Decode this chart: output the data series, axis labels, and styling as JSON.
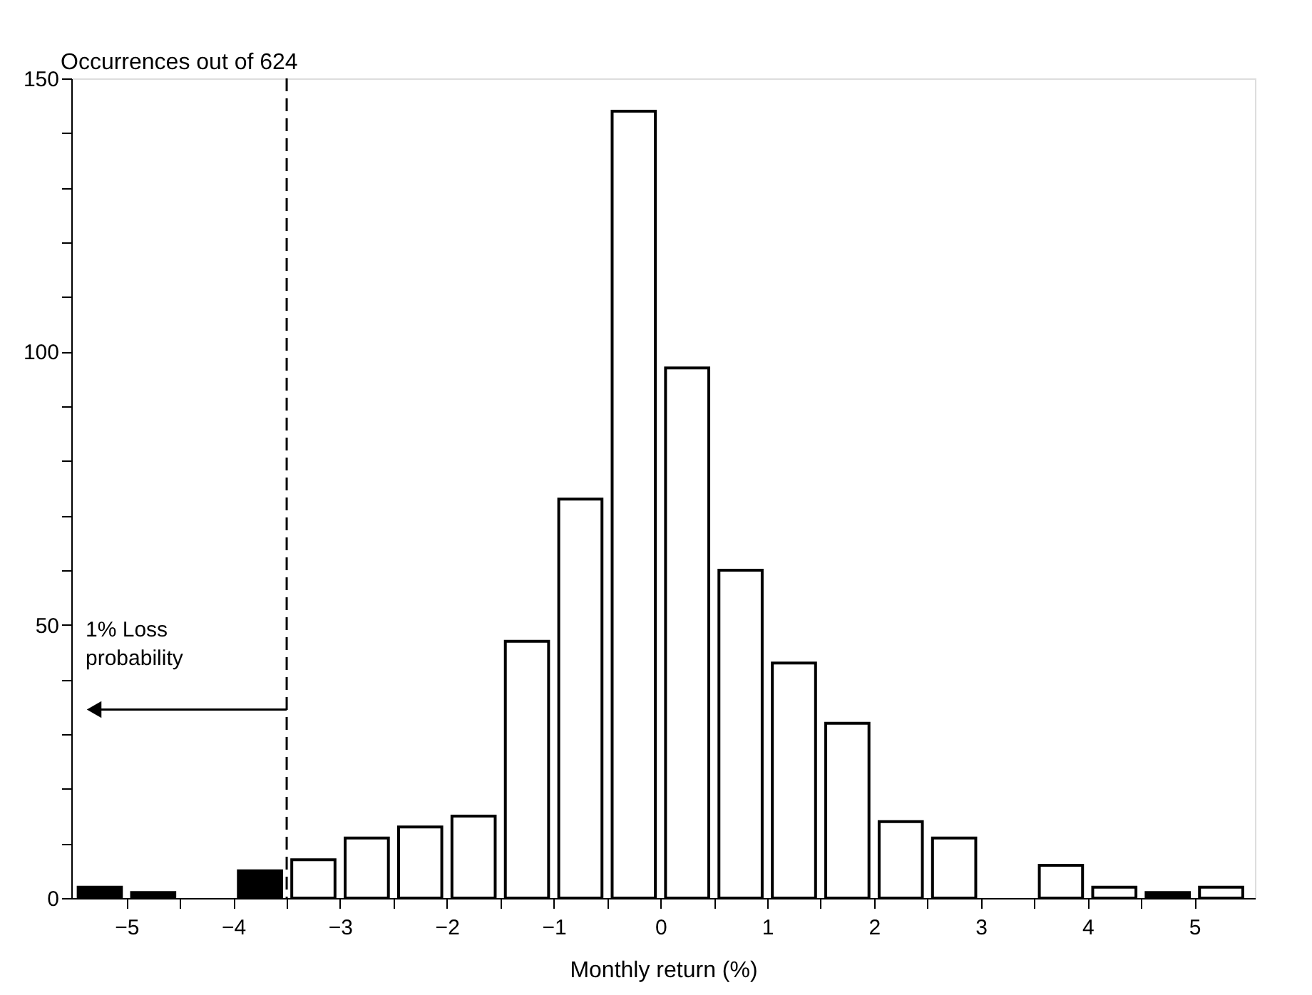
{
  "chart_data": {
    "type": "bar",
    "xlabel": "Monthly return (%)",
    "ylabel": "Occurrences out of 624",
    "x": [
      -5.25,
      -4.75,
      -4.25,
      -3.75,
      -3.25,
      -2.75,
      -2.25,
      -1.75,
      -1.25,
      -0.75,
      -0.25,
      0.25,
      0.75,
      1.25,
      1.75,
      2.25,
      2.75,
      3.25,
      3.75,
      4.25,
      4.75,
      5.25
    ],
    "values": [
      2,
      1,
      0,
      5,
      7,
      11,
      13,
      15,
      47,
      73,
      144,
      97,
      60,
      43,
      32,
      14,
      11,
      0,
      6,
      2,
      1,
      2
    ],
    "colors": [
      "#000000",
      "#000000",
      "#000000",
      "#000000",
      "#ffffff",
      "#ffffff",
      "#ffffff",
      "#ffffff",
      "#ffffff",
      "#ffffff",
      "#ffffff",
      "#ffffff",
      "#ffffff",
      "#ffffff",
      "#ffffff",
      "#ffffff",
      "#ffffff",
      "#ffffff",
      "#ffffff",
      "#ffffff",
      "#000000",
      "#ffffff"
    ],
    "xlim": [
      -5.45,
      5.5
    ],
    "xticks": [
      -5,
      {
        "value": -4.5,
        "label": null
      },
      -4,
      {
        "value": -3.5,
        "label": null
      },
      -3,
      {
        "value": -2.5,
        "label": null
      },
      -2,
      {
        "value": -1.5,
        "label": null
      },
      -1,
      {
        "value": -0.5,
        "label": null
      },
      0,
      {
        "value": 0.5,
        "label": null
      },
      1,
      {
        "value": 1.5,
        "label": null
      },
      2,
      {
        "value": 2.5,
        "label": null
      },
      3,
      {
        "value": 3.5,
        "label": null
      },
      4,
      {
        "value": 4.5,
        "label": null
      },
      5
    ],
    "ylim": [
      0,
      150
    ],
    "yticks": [
      0,
      {
        "value": 10,
        "label": null
      },
      {
        "value": 20,
        "label": null
      },
      {
        "value": 30,
        "label": null
      },
      {
        "value": 40,
        "label": null
      },
      50,
      {
        "value": 60,
        "label": null
      },
      {
        "value": 70,
        "label": null
      },
      {
        "value": 80,
        "label": null
      },
      {
        "value": 90,
        "label": null
      },
      100,
      {
        "value": 110,
        "label": null
      },
      {
        "value": 120,
        "label": null
      },
      {
        "value": 130,
        "label": null
      },
      {
        "value": 140,
        "label": null
      },
      150
    ],
    "ref_lines": [
      {
        "axis": "x",
        "value": -3.5,
        "label": "1% Loss\nprobability",
        "line_style": "dashed"
      }
    ],
    "grid": false
  }
}
